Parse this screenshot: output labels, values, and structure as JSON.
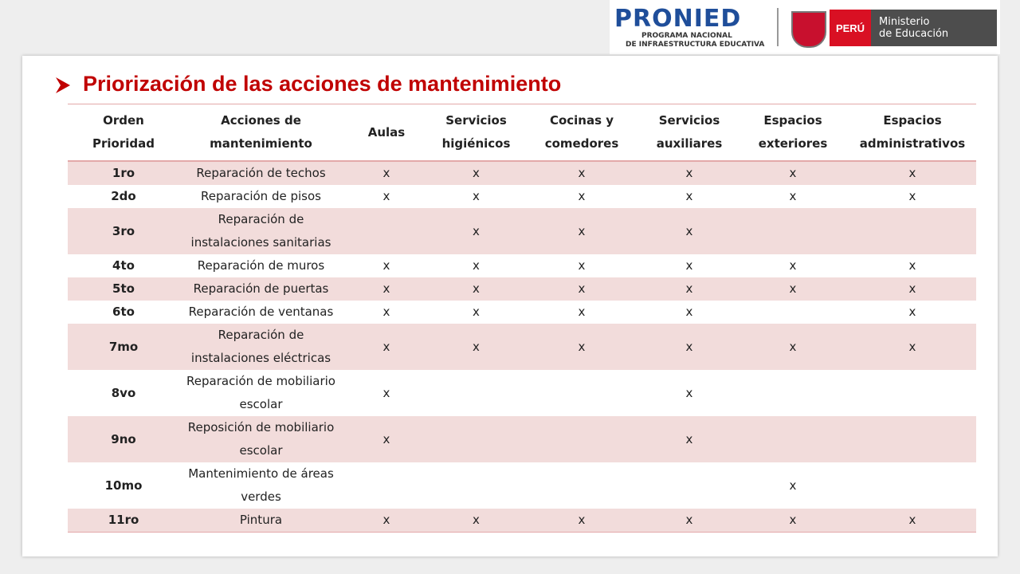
{
  "header": {
    "logo": "PRONIED",
    "logo_line1": "PROGRAMA NACIONAL",
    "logo_line2": "DE INFRAESTRUCTURA EDUCATIVA",
    "country": "PERÚ",
    "ministry_line1": "Ministerio",
    "ministry_line2": "de Educación"
  },
  "title": "Priorización de las acciones de mantenimiento",
  "table": {
    "columns": [
      "Orden Prioridad",
      "Acciones de mantenimiento",
      "Aulas",
      "Servicios higiénicos",
      "Cocinas y comedores",
      "Servicios auxiliares",
      "Espacios exteriores",
      "Espacios administrativos"
    ],
    "rows": [
      [
        "1ro",
        "Reparación de techos",
        "x",
        "x",
        "x",
        "x",
        "x",
        "x"
      ],
      [
        "2do",
        "Reparación de pisos",
        "x",
        "x",
        "x",
        "x",
        "x",
        "x"
      ],
      [
        "3ro",
        "Reparación de instalaciones sanitarias",
        null,
        "x",
        "x",
        "x",
        null,
        null
      ],
      [
        "4to",
        "Reparación de muros",
        "x",
        "x",
        "x",
        "x",
        "x",
        "x"
      ],
      [
        "5to",
        "Reparación de puertas",
        "x",
        "x",
        "x",
        "x",
        "x",
        "x"
      ],
      [
        "6to",
        "Reparación de ventanas",
        "x",
        "x",
        "x",
        "x",
        null,
        "x"
      ],
      [
        "7mo",
        "Reparación de instalaciones eléctricas",
        "x",
        "x",
        "x",
        "x",
        "x",
        "x"
      ],
      [
        "8vo",
        "Reparación de mobiliario escolar",
        "x",
        null,
        null,
        "x",
        null,
        null
      ],
      [
        "9no",
        "Reposición de mobiliario escolar",
        "x",
        null,
        null,
        "x",
        null,
        null
      ],
      [
        "10mo",
        "Mantenimiento de áreas verdes",
        null,
        null,
        null,
        null,
        "x",
        null
      ],
      [
        "11ro",
        "Pintura",
        "x",
        "x",
        "x",
        "x",
        "x",
        "x"
      ]
    ]
  }
}
